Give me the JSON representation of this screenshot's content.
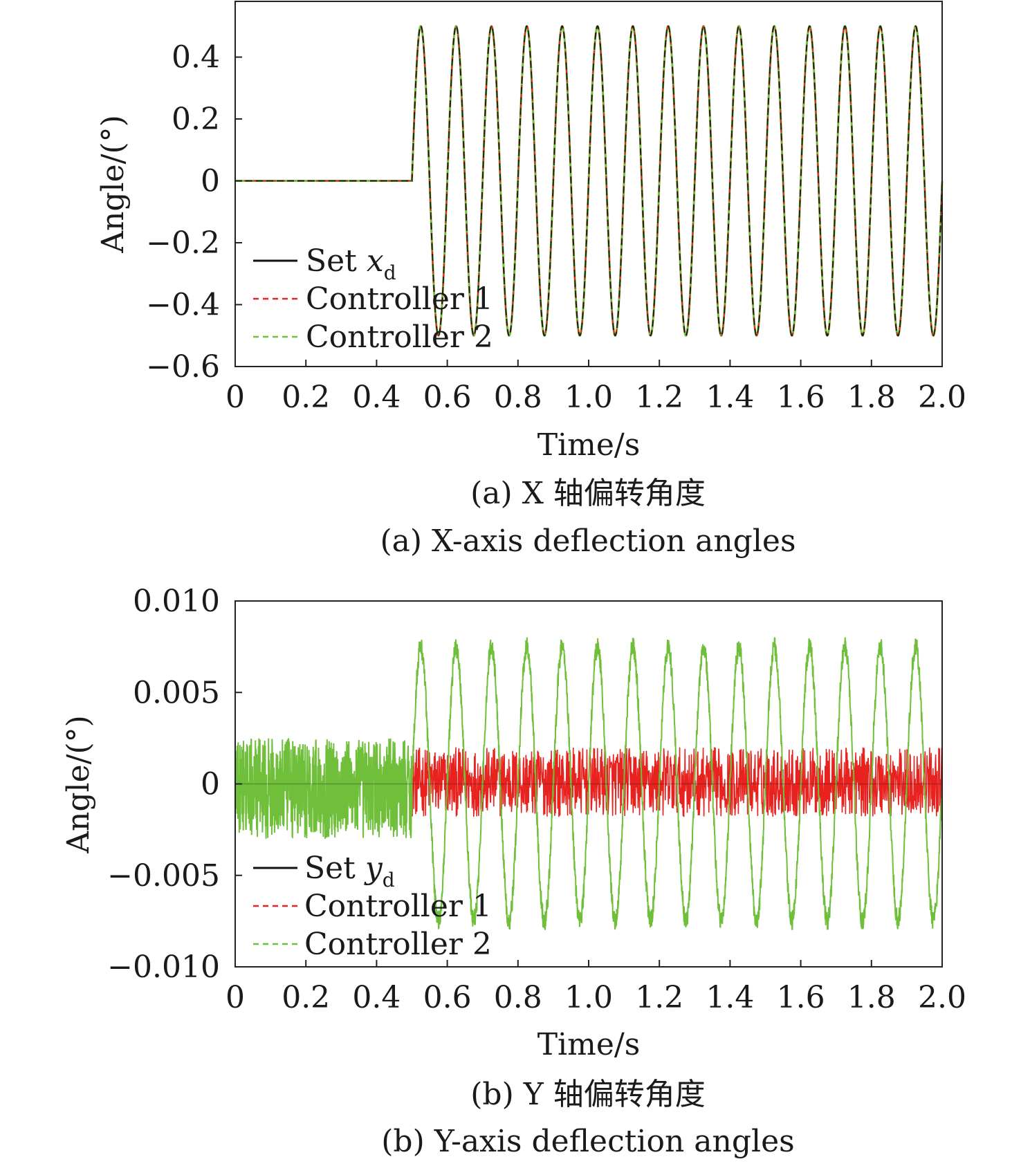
{
  "chart_data": [
    {
      "type": "line",
      "xlabel": "Time/s",
      "ylabel": "Angle/(°)",
      "xlim": [
        0,
        2.0
      ],
      "ylim": [
        -0.6,
        0.58
      ],
      "x_ticks": [
        "0",
        "0.2",
        "0.4",
        "0.6",
        "0.8",
        "1.0",
        "1.2",
        "1.4",
        "1.6",
        "1.8",
        "2.0"
      ],
      "x_tick_values": [
        0,
        0.2,
        0.4,
        0.6,
        0.8,
        1.0,
        1.2,
        1.4,
        1.6,
        1.8,
        2.0
      ],
      "y_ticks": [
        "0.4",
        "0.2",
        "0",
        "−0.2",
        "−0.4",
        "−0.6"
      ],
      "y_tick_values": [
        0.4,
        0.2,
        0,
        -0.2,
        -0.4,
        -0.6
      ],
      "legend": {
        "placement": "bottom-left",
        "entries": [
          {
            "label": "Set ",
            "var": "x",
            "sub": "d",
            "color": "#111111",
            "dash": "solid"
          },
          {
            "label": "Controller 1",
            "color": "#e8231f",
            "dash": "dashed"
          },
          {
            "label": "Controller 2",
            "color": "#6fbf3b",
            "dash": "dashed"
          }
        ]
      },
      "series": [
        {
          "name": "Set xd",
          "color": "#111111",
          "description": "0 for t < 0.5 s; sinusoid of amplitude 0.5° and period 0.1 s for t ≥ 0.5 s",
          "amplitude": 0.5,
          "period": 0.1,
          "start": 0.5
        },
        {
          "name": "Controller 1",
          "color": "#e8231f",
          "amplitude": 0.5,
          "period": 0.1,
          "start": 0.5
        },
        {
          "name": "Controller 2",
          "color": "#6fbf3b",
          "amplitude": 0.5,
          "period": 0.1,
          "start": 0.5
        }
      ],
      "caption_cn": "(a) X 轴偏转角度",
      "caption_en": "(a) X-axis deflection angles"
    },
    {
      "type": "line",
      "xlabel": "Time/s",
      "ylabel": "Angle/(°)",
      "xlim": [
        0,
        2.0
      ],
      "ylim": [
        -0.01,
        0.01
      ],
      "x_ticks": [
        "0",
        "0.2",
        "0.4",
        "0.6",
        "0.8",
        "1.0",
        "1.2",
        "1.4",
        "1.6",
        "1.8",
        "2.0"
      ],
      "x_tick_values": [
        0,
        0.2,
        0.4,
        0.6,
        0.8,
        1.0,
        1.2,
        1.4,
        1.6,
        1.8,
        2.0
      ],
      "y_ticks": [
        "0.010",
        "0.005",
        "0",
        "−0.005",
        "−0.010"
      ],
      "y_tick_values": [
        0.01,
        0.005,
        0,
        -0.005,
        -0.01
      ],
      "legend": {
        "placement": "bottom-left",
        "entries": [
          {
            "label": "Set ",
            "var": "y",
            "sub": "d",
            "color": "#111111",
            "dash": "solid"
          },
          {
            "label": "Controller 1",
            "color": "#e8231f",
            "dash": "dashed"
          },
          {
            "label": "Controller 2",
            "color": "#6fbf3b",
            "dash": "dashed"
          }
        ]
      },
      "series": [
        {
          "name": "Set yd",
          "color": "#111111",
          "value": 0
        },
        {
          "name": "Controller 1",
          "color": "#e8231f",
          "description": "noise band about 0, roughly ±0.002° after 0.5 s",
          "band": [
            -0.0018,
            0.002
          ]
        },
        {
          "name": "Controller 2",
          "color": "#6fbf3b",
          "description": "noise band ±0.002° before 0.5 s, then oscillation of about ±0.0075° with period 0.1 s",
          "band_before": [
            -0.003,
            0.0025
          ],
          "amplitude_after": 0.0075,
          "period": 0.1,
          "start": 0.5
        }
      ],
      "caption_cn": "(b) Y 轴偏转角度",
      "caption_en": "(b) Y-axis deflection angles"
    }
  ]
}
